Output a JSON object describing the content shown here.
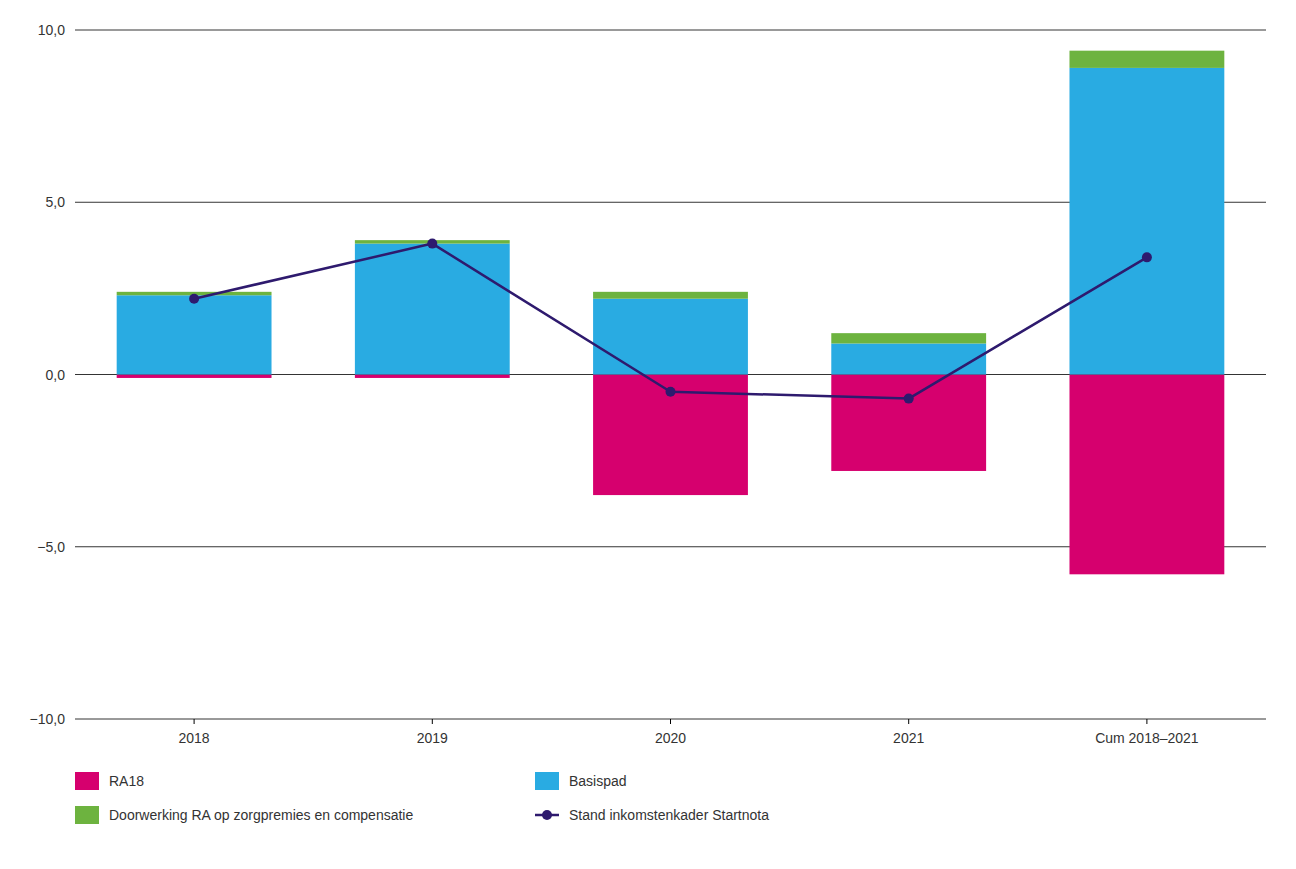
{
  "chart_data": {
    "type": "bar",
    "categories": [
      "2018",
      "2019",
      "2020",
      "2021",
      "Cum 2018–2021"
    ],
    "series": [
      {
        "name": "RA18",
        "type": "bar",
        "color": "#D6006E",
        "values": [
          -0.1,
          -0.1,
          -3.5,
          -2.8,
          -5.8
        ]
      },
      {
        "name": "Basispad",
        "type": "bar",
        "color": "#29ABE2",
        "values": [
          2.3,
          3.8,
          2.2,
          0.9,
          8.9
        ]
      },
      {
        "name": "Doorwerking RA op zorgpremies en compensatie",
        "type": "bar",
        "color": "#6DB33F",
        "values": [
          0.1,
          0.1,
          0.2,
          0.3,
          0.5
        ]
      },
      {
        "name": "Stand inkomstenkader Startnota",
        "type": "line",
        "color": "#2E1A6E",
        "marker": "circle",
        "values": [
          2.2,
          3.8,
          -0.5,
          -0.7,
          3.4
        ]
      }
    ],
    "stacked": true,
    "ylim": [
      -10.0,
      10.0
    ],
    "yticks": [
      {
        "value": -10.0,
        "label": "−10,0"
      },
      {
        "value": -5.0,
        "label": "−5,0"
      },
      {
        "value": 0.0,
        "label": "0,0"
      },
      {
        "value": 5.0,
        "label": "5,0"
      },
      {
        "value": 10.0,
        "label": "10,0"
      }
    ],
    "grid": true,
    "legend": "bottom"
  }
}
